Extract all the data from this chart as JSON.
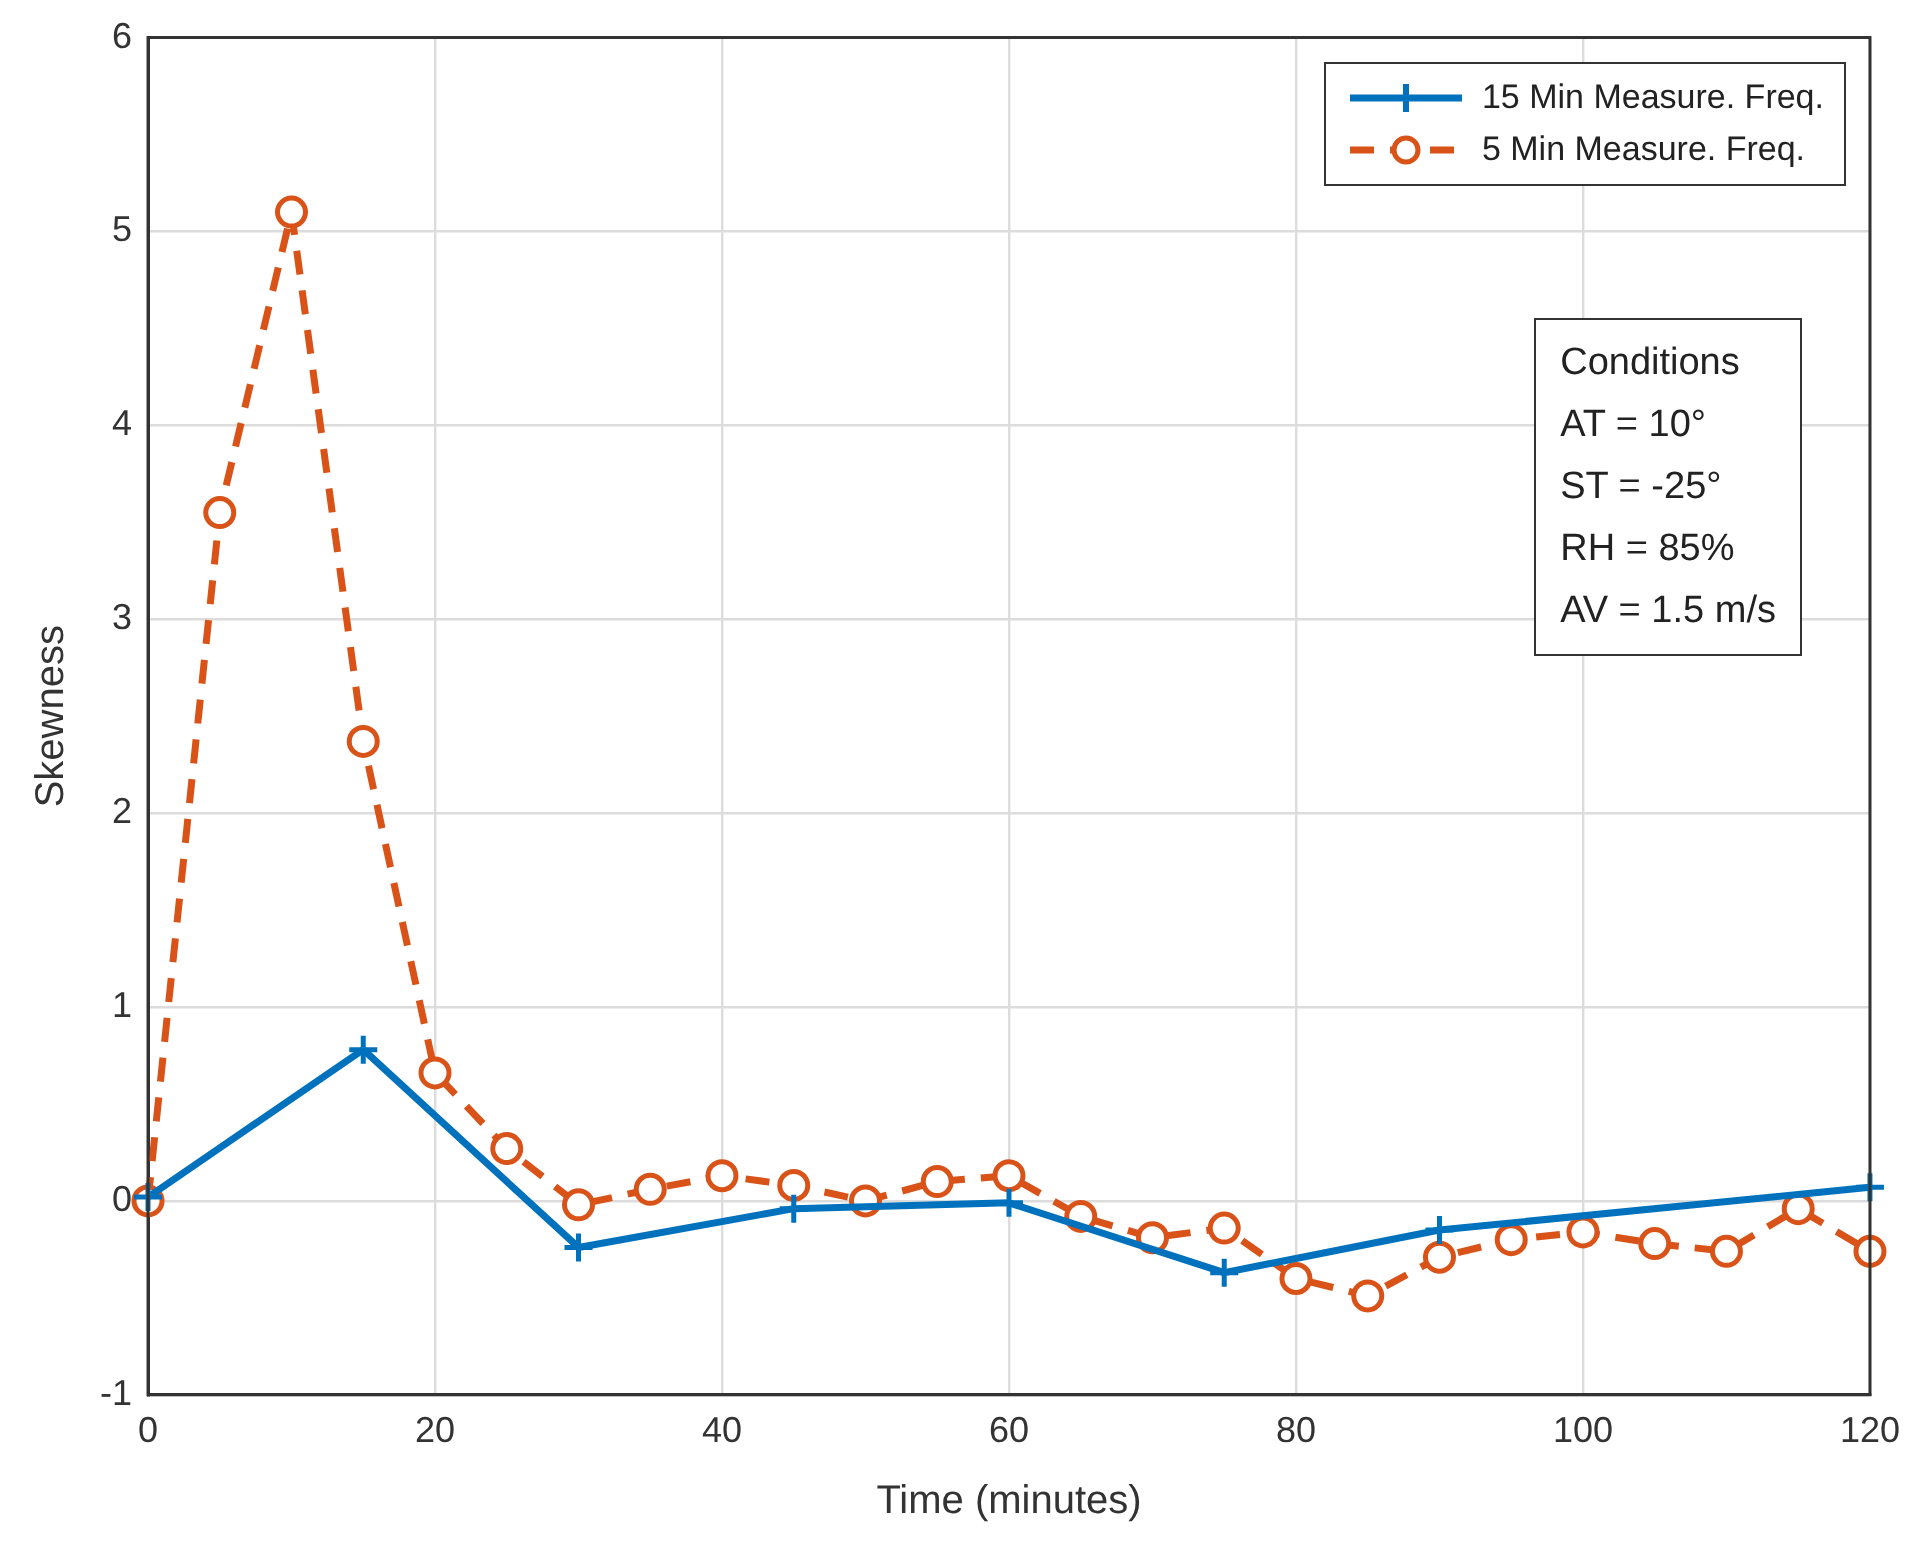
{
  "chart_data": {
    "type": "line",
    "xlabel": "Time (minutes)",
    "ylabel": "Skewness",
    "xlim": [
      0,
      120
    ],
    "xticks": [
      0,
      20,
      40,
      60,
      80,
      100,
      120
    ],
    "ylim": [
      -1,
      6
    ],
    "yticks": [
      -1,
      0,
      1,
      2,
      3,
      4,
      5,
      6
    ],
    "grid": true,
    "legend": "top right",
    "series": [
      {
        "name": "15 Min Measure. Freq.",
        "color": "#0072bd",
        "marker": "cross",
        "line_style": "solid",
        "x": [
          0,
          15,
          30,
          45,
          60,
          75,
          90,
          120
        ],
        "values": [
          0.02,
          0.78,
          -0.24,
          -0.04,
          -0.01,
          -0.37,
          -0.15,
          0.07
        ]
      },
      {
        "name": "5 Min Measure. Freq.",
        "color": "#d95319",
        "marker": "circle",
        "line_style": "dashed",
        "x": [
          0,
          5,
          10,
          15,
          20,
          25,
          30,
          35,
          40,
          45,
          50,
          55,
          60,
          65,
          70,
          75,
          80,
          85,
          90,
          95,
          100,
          105,
          110,
          115,
          120
        ],
        "values": [
          0.0,
          3.55,
          5.1,
          2.37,
          0.66,
          0.27,
          -0.02,
          0.06,
          0.13,
          0.08,
          0.0,
          0.1,
          0.13,
          -0.08,
          -0.19,
          -0.14,
          -0.4,
          -0.49,
          -0.29,
          -0.2,
          -0.16,
          -0.22,
          -0.26,
          -0.04,
          -0.26
        ]
      }
    ],
    "annotations": [
      "Conditions",
      "AT = 10°",
      "ST = -25°",
      "RH = 85%",
      "AV = 1.5 m/s"
    ]
  }
}
